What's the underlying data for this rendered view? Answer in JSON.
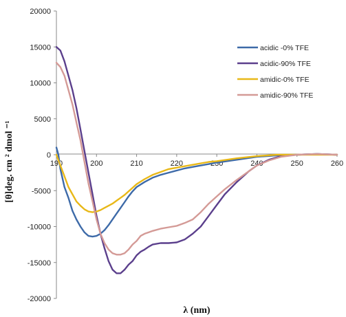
{
  "chart_data": {
    "type": "line",
    "xlabel": "λ (nm)",
    "ylabel": "[θ]deg. cm ² dmol ⁻¹",
    "xlim": [
      190,
      260
    ],
    "ylim": [
      -20000,
      20000
    ],
    "x_ticks": [
      "190",
      "200",
      "210",
      "220",
      "230",
      "240",
      "250",
      "260"
    ],
    "y_ticks": [
      "20000",
      "15000",
      "10000",
      "5000",
      "0",
      "-5000",
      "-10000",
      "-15000",
      "-20000"
    ],
    "grid": false,
    "legend_position": "top-right",
    "series": [
      {
        "name": "acidic -0% TFE",
        "color": "#3d6aa8",
        "x": [
          190,
          190.5,
          191,
          192,
          193,
          194,
          195,
          196,
          197,
          198,
          199,
          200,
          201,
          202,
          203,
          204,
          205,
          206,
          207,
          208,
          209,
          210,
          212,
          214,
          216,
          218,
          220,
          222,
          225,
          228,
          230,
          235,
          240,
          245,
          250,
          255,
          260
        ],
        "y": [
          1000,
          0,
          -2000,
          -4500,
          -6000,
          -7800,
          -9000,
          -10000,
          -10800,
          -11300,
          -11400,
          -11300,
          -11000,
          -10500,
          -9800,
          -9000,
          -8200,
          -7400,
          -6600,
          -5800,
          -5100,
          -4500,
          -3800,
          -3200,
          -2800,
          -2500,
          -2200,
          -1900,
          -1600,
          -1300,
          -1100,
          -700,
          -300,
          -100,
          0,
          100,
          0
        ]
      },
      {
        "name": "acidic-90% TFE",
        "color": "#5b3f8c",
        "x": [
          190,
          191,
          192,
          193,
          194,
          195,
          196,
          197,
          198,
          199,
          200,
          201,
          202,
          203,
          204,
          205,
          206,
          207,
          208,
          209,
          210,
          211,
          212,
          213,
          214,
          216,
          218,
          220,
          222,
          224,
          226,
          228,
          230,
          232,
          235,
          238,
          240,
          243,
          246,
          250,
          255,
          260
        ],
        "y": [
          15000,
          14500,
          13000,
          11000,
          9000,
          6500,
          3500,
          500,
          -2500,
          -5500,
          -8500,
          -11000,
          -13000,
          -14800,
          -16000,
          -16500,
          -16500,
          -16000,
          -15300,
          -14800,
          -14000,
          -13500,
          -13200,
          -12800,
          -12500,
          -12300,
          -12300,
          -12200,
          -11800,
          -11000,
          -10000,
          -8500,
          -7000,
          -5500,
          -3800,
          -2300,
          -1500,
          -700,
          -200,
          0,
          100,
          0
        ]
      },
      {
        "name": "amidic-0% TFE",
        "color": "#e8b818",
        "x": [
          190,
          191,
          192,
          193,
          194,
          195,
          196,
          197,
          198,
          199,
          200,
          201,
          202,
          203,
          204,
          205,
          206,
          207,
          208,
          209,
          210,
          212,
          214,
          216,
          218,
          220,
          222,
          225,
          228,
          230,
          235,
          240,
          245,
          250,
          255,
          260
        ],
        "y": [
          0,
          -1500,
          -3000,
          -4500,
          -5500,
          -6500,
          -7100,
          -7600,
          -7900,
          -8000,
          -7900,
          -7700,
          -7400,
          -7100,
          -6800,
          -6400,
          -6000,
          -5600,
          -5100,
          -4600,
          -4100,
          -3400,
          -2800,
          -2400,
          -2000,
          -1800,
          -1600,
          -1300,
          -1000,
          -900,
          -500,
          -200,
          0,
          0,
          0,
          0
        ]
      },
      {
        "name": "amidic-90% TFE",
        "color": "#d49a96",
        "x": [
          190,
          191,
          192,
          193,
          194,
          195,
          196,
          197,
          198,
          199,
          200,
          201,
          202,
          203,
          204,
          205,
          206,
          207,
          208,
          209,
          210,
          211,
          212,
          213,
          214,
          216,
          218,
          220,
          222,
          224,
          226,
          228,
          230,
          232,
          235,
          238,
          240,
          243,
          246,
          250,
          255,
          260
        ],
        "y": [
          12800,
          12200,
          11000,
          9000,
          7000,
          4500,
          2000,
          -1000,
          -4000,
          -6500,
          -9000,
          -11000,
          -12300,
          -13200,
          -13700,
          -13900,
          -13900,
          -13700,
          -13200,
          -12500,
          -12000,
          -11300,
          -11000,
          -10800,
          -10600,
          -10300,
          -10100,
          -9900,
          -9500,
          -9000,
          -8000,
          -6800,
          -5800,
          -4800,
          -3500,
          -2300,
          -1500,
          -800,
          -300,
          0,
          100,
          0
        ]
      }
    ]
  }
}
